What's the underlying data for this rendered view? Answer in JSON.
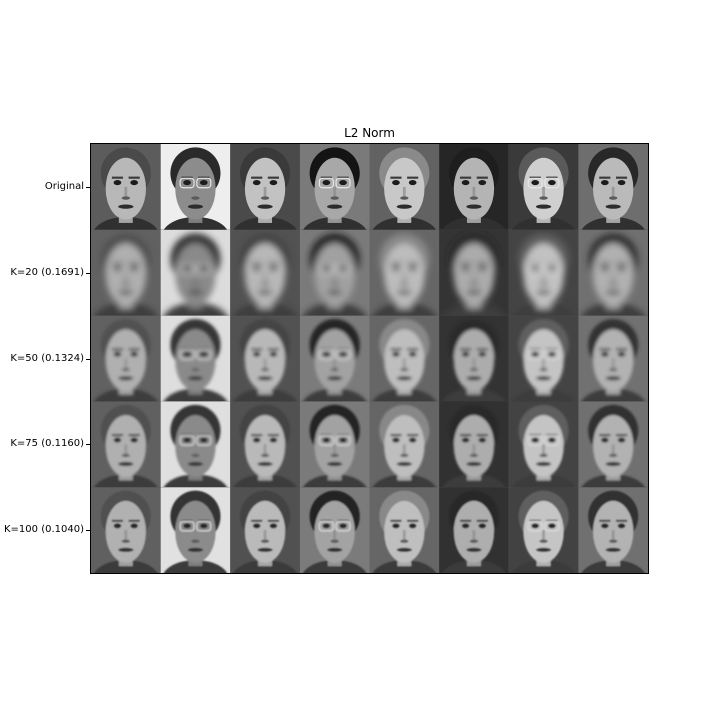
{
  "chart_data": {
    "type": "image-grid",
    "title": "L2 Norm",
    "rows": [
      {
        "label": "Original",
        "k": null,
        "error": null
      },
      {
        "label": "K=20 (0.1691)",
        "k": 20,
        "error": 0.1691
      },
      {
        "label": "K=50 (0.1324)",
        "k": 50,
        "error": 0.1324
      },
      {
        "label": "K=75 (0.1160)",
        "k": 75,
        "error": 0.116
      },
      {
        "label": "K=100 (0.1040)",
        "k": 100,
        "error": 0.104
      }
    ],
    "columns": 8,
    "cell_content": "grayscale face image",
    "faces": [
      {
        "bg": "#5c5c5c",
        "skin": "#b8b8b8",
        "hair": "#4a4a4a",
        "glasses": false
      },
      {
        "bg": "#eeeeee",
        "skin": "#8c8c8c",
        "hair": "#2a2a2a",
        "glasses": true
      },
      {
        "bg": "#4a4a4a",
        "skin": "#c2c2c2",
        "hair": "#3a3a3a",
        "glasses": false
      },
      {
        "bg": "#7a7a7a",
        "skin": "#a8a8a8",
        "hair": "#141414",
        "glasses": true
      },
      {
        "bg": "#626262",
        "skin": "#c8c8c8",
        "hair": "#8a8a8a",
        "glasses": false
      },
      {
        "bg": "#262626",
        "skin": "#b4b4b4",
        "hair": "#1e1e1e",
        "glasses": false
      },
      {
        "bg": "#3a3a3a",
        "skin": "#cfcfcf",
        "hair": "#5a5a5a",
        "glasses": true
      },
      {
        "bg": "#6e6e6e",
        "skin": "#bababa",
        "hair": "#282828",
        "glasses": false
      }
    ],
    "blur_by_row": [
      0,
      3.2,
      1.6,
      1.1,
      0.8
    ]
  }
}
